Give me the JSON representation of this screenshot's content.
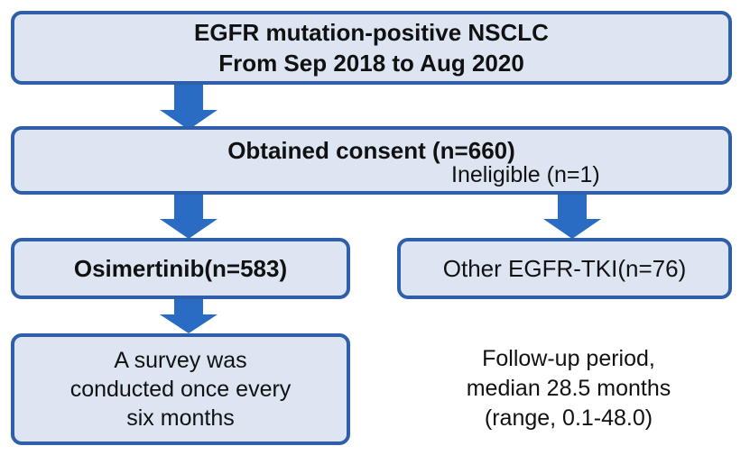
{
  "top_box": {
    "line1": "EGFR mutation-positive NSCLC",
    "line2": "From Sep 2018 to Aug 2020"
  },
  "consent_box": {
    "title": "Obtained consent (n=660)",
    "excluded": "Ineligible (n=1)"
  },
  "osimertinib_box": {
    "label": "Osimertinib(n=583)"
  },
  "other_box": {
    "label": "Other EGFR-TKI(n=76)"
  },
  "survey_box": {
    "line1": "A survey was",
    "line2": "conducted once every",
    "line3": "six months"
  },
  "followup": {
    "line1": "Follow-up period,",
    "line2": "median 28.5 months",
    "line3": "(range, 0.1-48.0)"
  },
  "colors": {
    "box_fill": "#dde5f3",
    "box_border": "#2f5fa8",
    "arrow": "#2a6cc4",
    "thin_arrow": "#3d74d6"
  },
  "icons": {
    "down_arrows": "block-down-arrow",
    "side_arrow": "thin-right-arrow"
  }
}
